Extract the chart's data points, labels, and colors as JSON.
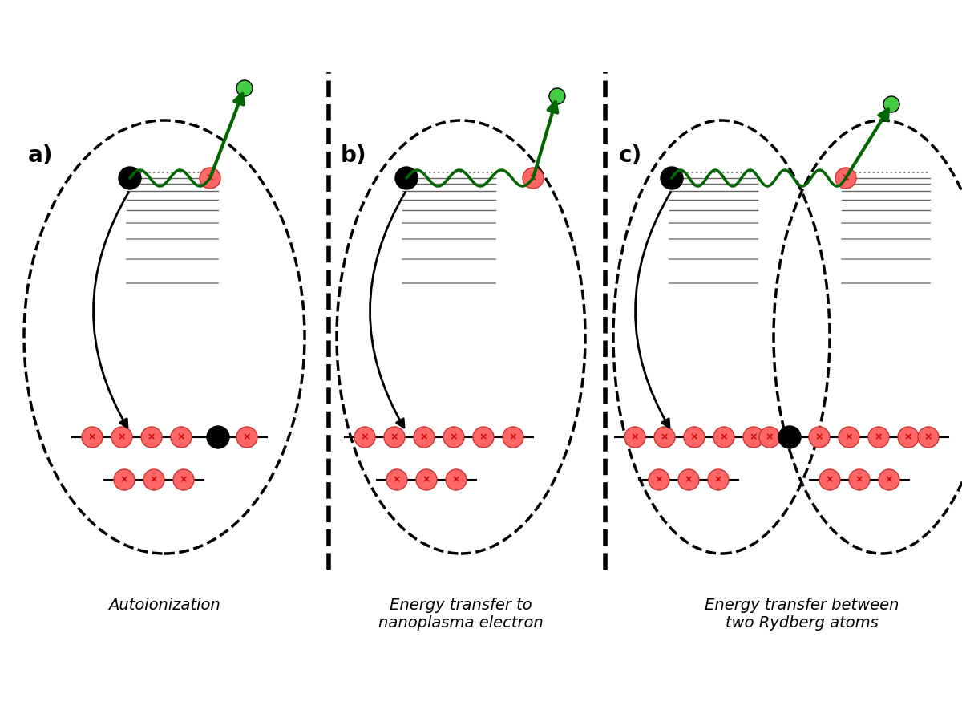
{
  "bg_color": "#ffffff",
  "label_a": "a)",
  "label_b": "b)",
  "label_c": "c)",
  "caption_a": "Autoionization",
  "caption_b": "Energy transfer to\nnanoplasma electron",
  "caption_c": "Energy transfer between\ntwo Rydberg atoms",
  "ion_color": "#ff6666",
  "ion_cross_color": "#cc0000",
  "electron_black": "#000000",
  "electron_green": "#44cc44",
  "line_color": "#888888",
  "dotted_line_color": "#aaaaaa",
  "arrow_color": "#006600",
  "divider_color": "#000000",
  "dashed_ellipse_color": "#000000"
}
